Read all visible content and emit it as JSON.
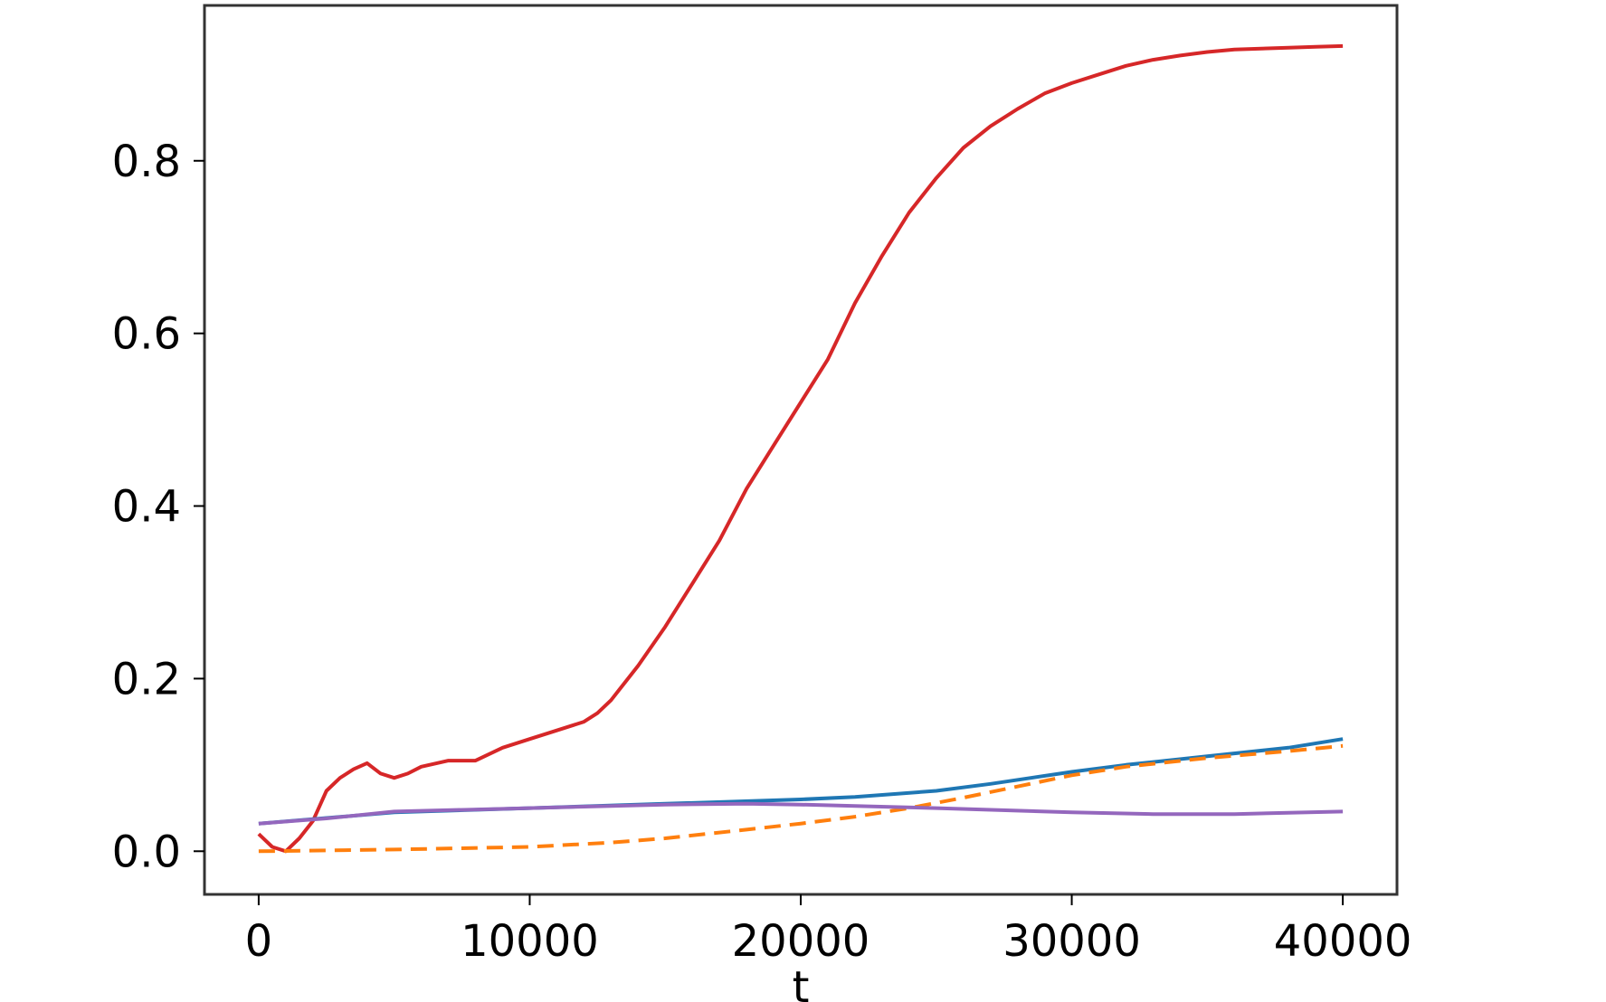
{
  "chart_data": {
    "type": "line",
    "title": "",
    "xlabel": "t",
    "ylabel": "",
    "xlim": [
      -2000,
      42000
    ],
    "ylim": [
      -0.05,
      0.98
    ],
    "x_ticks": [
      0,
      10000,
      20000,
      30000,
      40000
    ],
    "x_tick_labels": [
      "0",
      "10000",
      "20000",
      "30000",
      "40000"
    ],
    "y_ticks": [
      0.0,
      0.2,
      0.4,
      0.6,
      0.8
    ],
    "y_tick_labels": [
      "0.0",
      "0.2",
      "0.4",
      "0.6",
      "0.8"
    ],
    "grid": false,
    "legend": false,
    "series": [
      {
        "color": "#d62728",
        "style": "solid",
        "x": [
          0,
          500,
          1000,
          1500,
          2000,
          2500,
          3000,
          3500,
          4000,
          4500,
          5000,
          5500,
          6000,
          7000,
          8000,
          9000,
          10000,
          11000,
          12000,
          12500,
          13000,
          14000,
          15000,
          16000,
          17000,
          18000,
          19000,
          20000,
          21000,
          22000,
          23000,
          24000,
          25000,
          26000,
          27000,
          28000,
          29000,
          30000,
          31000,
          32000,
          33000,
          34000,
          35000,
          36000,
          37000,
          38000,
          39000,
          40000
        ],
        "y": [
          0.02,
          0.005,
          0.0,
          0.015,
          0.035,
          0.07,
          0.085,
          0.095,
          0.102,
          0.09,
          0.085,
          0.09,
          0.098,
          0.105,
          0.105,
          0.12,
          0.13,
          0.14,
          0.15,
          0.16,
          0.175,
          0.215,
          0.26,
          0.31,
          0.36,
          0.42,
          0.47,
          0.52,
          0.57,
          0.635,
          0.69,
          0.74,
          0.78,
          0.815,
          0.84,
          0.86,
          0.878,
          0.89,
          0.9,
          0.91,
          0.917,
          0.922,
          0.926,
          0.929,
          0.93,
          0.931,
          0.932,
          0.933
        ]
      },
      {
        "color": "#1f77b4",
        "style": "solid",
        "x": [
          0,
          5000,
          10000,
          15000,
          20000,
          22000,
          25000,
          27000,
          30000,
          32000,
          35000,
          38000,
          40000
        ],
        "y": [
          0.032,
          0.045,
          0.05,
          0.055,
          0.06,
          0.063,
          0.07,
          0.078,
          0.092,
          0.1,
          0.11,
          0.12,
          0.13
        ]
      },
      {
        "color": "#ff7f0e",
        "style": "dashed",
        "x": [
          0,
          5000,
          10000,
          13000,
          15000,
          18000,
          20000,
          22000,
          24000,
          26000,
          28000,
          30000,
          32000,
          35000,
          38000,
          40000
        ],
        "y": [
          0.0,
          0.002,
          0.005,
          0.01,
          0.015,
          0.025,
          0.032,
          0.04,
          0.05,
          0.062,
          0.075,
          0.088,
          0.098,
          0.108,
          0.116,
          0.122
        ]
      },
      {
        "color": "#9467bd",
        "style": "solid",
        "x": [
          0,
          2500,
          5000,
          10000,
          15000,
          18000,
          20000,
          25000,
          30000,
          33000,
          36000,
          40000
        ],
        "y": [
          0.032,
          0.038,
          0.046,
          0.05,
          0.054,
          0.055,
          0.054,
          0.05,
          0.045,
          0.043,
          0.043,
          0.046
        ]
      }
    ]
  }
}
